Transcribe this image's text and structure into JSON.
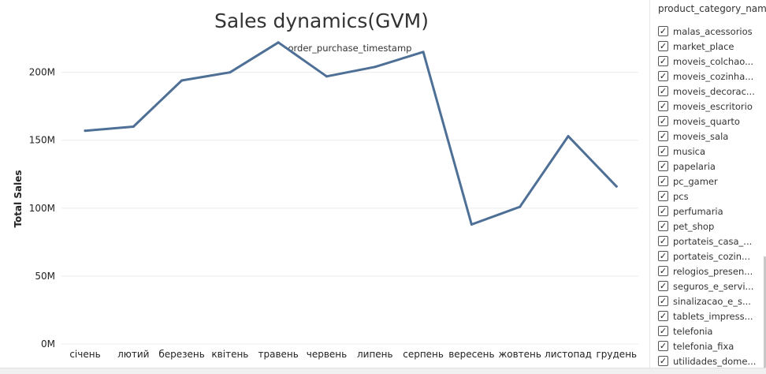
{
  "chart_data": {
    "type": "line",
    "title": "Sales dynamics(GVM)",
    "subtitle": "order_purchase_timestamp",
    "xlabel": "",
    "ylabel": "Total Sales",
    "categories": [
      "січень",
      "лютий",
      "березень",
      "квітень",
      "травень",
      "червень",
      "липень",
      "серпень",
      "вересень",
      "жовтень",
      "листопад",
      "грудень"
    ],
    "series": [
      {
        "values": [
          157,
          160,
          194,
          200,
          222,
          197,
          204,
          215,
          88,
          101,
          153,
          116
        ]
      }
    ],
    "yticks": [
      {
        "value": 0,
        "label": "0M"
      },
      {
        "value": 50,
        "label": "50M"
      },
      {
        "value": 100,
        "label": "100M"
      },
      {
        "value": 150,
        "label": "150M"
      },
      {
        "value": 200,
        "label": "200M"
      }
    ],
    "ylim": [
      0,
      230
    ],
    "unit": "M",
    "grid": true,
    "line_color": "#4e6f96"
  },
  "filter": {
    "title": "product_category_name",
    "items": [
      {
        "label": "malas_acessorios",
        "checked": true
      },
      {
        "label": "market_place",
        "checked": true
      },
      {
        "label": "moveis_colchao...",
        "checked": true
      },
      {
        "label": "moveis_cozinha...",
        "checked": true
      },
      {
        "label": "moveis_decorac...",
        "checked": true
      },
      {
        "label": "moveis_escritorio",
        "checked": true
      },
      {
        "label": "moveis_quarto",
        "checked": true
      },
      {
        "label": "moveis_sala",
        "checked": true
      },
      {
        "label": "musica",
        "checked": true
      },
      {
        "label": "papelaria",
        "checked": true
      },
      {
        "label": "pc_gamer",
        "checked": true
      },
      {
        "label": "pcs",
        "checked": true
      },
      {
        "label": "perfumaria",
        "checked": true
      },
      {
        "label": "pet_shop",
        "checked": true
      },
      {
        "label": "portateis_casa_...",
        "checked": true
      },
      {
        "label": "portateis_cozin...",
        "checked": true
      },
      {
        "label": "relogios_presen...",
        "checked": true
      },
      {
        "label": "seguros_e_servi...",
        "checked": true
      },
      {
        "label": "sinalizacao_e_s...",
        "checked": true
      },
      {
        "label": "tablets_impress...",
        "checked": true
      },
      {
        "label": "telefonia",
        "checked": true
      },
      {
        "label": "telefonia_fixa",
        "checked": true
      },
      {
        "label": "utilidades_dome...",
        "checked": true
      }
    ],
    "check_glyph": "✓"
  }
}
